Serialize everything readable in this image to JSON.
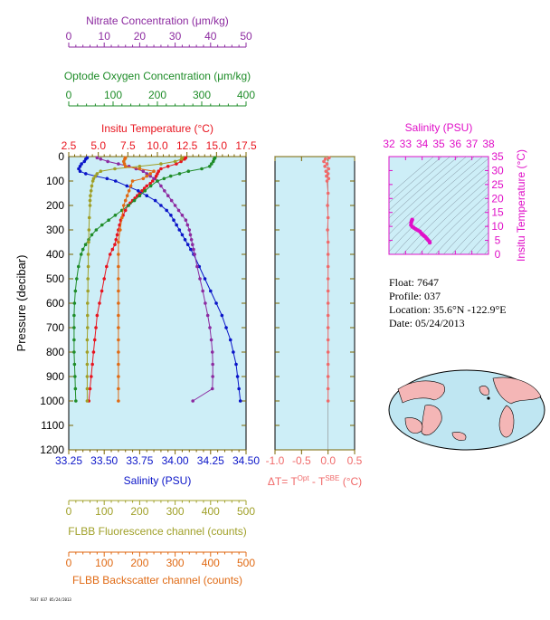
{
  "info": {
    "float": "Float:  7647",
    "profile": "Profile:  037",
    "location": "Location:  35.6°N  -122.9°E",
    "date": "Date:  05/24/2013"
  },
  "footer": "7647 037 05/24/2013",
  "colors": {
    "panel_bg": "#cdeef7",
    "temperature": "#e8141e",
    "salinity": "#0a14c8",
    "nitrate": "#8c2aa0",
    "oxygen": "#1e8c28",
    "fluorescence": "#a0a028",
    "backscatter": "#e06a14",
    "delta_t": "#f06a6a",
    "ts_magenta": "#e010c8",
    "axis_brown": "#7a6400"
  },
  "chart_data": [
    {
      "type": "line",
      "title": "",
      "ylabel": "Pressure (decibar)",
      "ylim": [
        0,
        1200
      ],
      "yticks": [
        "0",
        "100",
        "200",
        "300",
        "400",
        "500",
        "600",
        "700",
        "800",
        "900",
        "1000",
        "1100",
        "1200"
      ],
      "axes": {
        "nitrate": {
          "label": "Nitrate Concentration (μm/kg)",
          "lim": [
            0,
            50
          ],
          "ticks": [
            "0",
            "10",
            "20",
            "30",
            "40",
            "50"
          ]
        },
        "oxygen": {
          "label": "Optode Oxygen Concentration (μm/kg)",
          "lim": [
            0,
            400
          ],
          "ticks": [
            "0",
            "100",
            "200",
            "300",
            "400"
          ]
        },
        "temperature": {
          "label": "Insitu Temperature (°C)",
          "lim": [
            2.5,
            17.5
          ],
          "ticks": [
            "2.5",
            "5.0",
            "7.5",
            "10.0",
            "12.5",
            "15.0",
            "17.5"
          ]
        },
        "salinity": {
          "label": "Salinity (PSU)",
          "lim": [
            33.25,
            34.5
          ],
          "ticks": [
            "33.25",
            "33.50",
            "33.75",
            "34.00",
            "34.25",
            "34.50"
          ]
        },
        "fluorescence": {
          "label": "FLBB Fluorescence channel (counts)",
          "lim": [
            0,
            500
          ],
          "ticks": [
            "0",
            "100",
            "200",
            "300",
            "400",
            "500"
          ]
        },
        "backscatter": {
          "label": "FLBB Backscatter channel (counts)",
          "lim": [
            0,
            500
          ],
          "ticks": [
            "0",
            "100",
            "200",
            "300",
            "400",
            "500"
          ]
        }
      },
      "series": [
        {
          "key": "temperature",
          "y": [
            5,
            10,
            20,
            30,
            40,
            50,
            60,
            70,
            80,
            90,
            100,
            110,
            120,
            130,
            140,
            150,
            160,
            170,
            180,
            190,
            200,
            220,
            240,
            260,
            280,
            300,
            320,
            340,
            360,
            380,
            400,
            450,
            500,
            550,
            600,
            650,
            700,
            750,
            800,
            850,
            900,
            950,
            1000
          ],
          "x": [
            12.4,
            12.3,
            12.0,
            11.6,
            10.9,
            10.3,
            10.1,
            10.0,
            9.9,
            9.8,
            9.6,
            9.4,
            9.1,
            8.9,
            8.7,
            8.5,
            8.3,
            8.1,
            7.9,
            7.7,
            7.5,
            7.3,
            7.1,
            6.9,
            6.8,
            6.7,
            6.6,
            6.5,
            6.4,
            6.2,
            6.0,
            5.7,
            5.5,
            5.3,
            5.1,
            4.9,
            4.8,
            4.7,
            4.6,
            4.5,
            4.4,
            4.3,
            4.2
          ]
        },
        {
          "key": "salinity",
          "y": [
            5,
            10,
            20,
            30,
            40,
            50,
            60,
            70,
            80,
            90,
            100,
            120,
            140,
            160,
            180,
            200,
            220,
            240,
            260,
            280,
            300,
            320,
            340,
            360,
            380,
            400,
            450,
            500,
            550,
            600,
            650,
            700,
            750,
            800,
            850,
            900,
            950,
            1000
          ],
          "x": [
            33.38,
            33.37,
            33.36,
            33.34,
            33.33,
            33.32,
            33.33,
            33.37,
            33.44,
            33.52,
            33.58,
            33.66,
            33.74,
            33.8,
            33.86,
            33.9,
            33.94,
            33.97,
            33.99,
            34.01,
            34.03,
            34.05,
            34.07,
            34.09,
            34.11,
            34.13,
            34.17,
            34.21,
            34.25,
            34.29,
            34.33,
            34.36,
            34.39,
            34.41,
            34.43,
            34.44,
            34.45,
            34.46
          ]
        },
        {
          "key": "nitrate",
          "y": [
            5,
            10,
            20,
            30,
            40,
            50,
            60,
            70,
            80,
            90,
            100,
            120,
            140,
            160,
            180,
            200,
            220,
            240,
            260,
            280,
            300,
            320,
            340,
            360,
            380,
            400,
            450,
            500,
            550,
            600,
            650,
            700,
            750,
            800,
            850,
            900,
            950,
            1000
          ],
          "x": [
            8,
            9,
            11,
            14,
            17,
            19,
            21,
            22,
            23,
            24,
            25,
            26,
            27,
            28,
            29,
            30,
            31,
            32,
            33,
            33.5,
            34,
            34.3,
            34.6,
            34.9,
            35.2,
            35.5,
            36.2,
            37,
            37.8,
            38.5,
            39.2,
            39.8,
            40.2,
            40.5,
            40.6,
            40.6,
            40.5,
            35
          ]
        },
        {
          "key": "oxygen",
          "y": [
            5,
            10,
            20,
            30,
            40,
            50,
            60,
            70,
            80,
            90,
            100,
            120,
            140,
            160,
            180,
            200,
            220,
            240,
            260,
            280,
            300,
            320,
            340,
            360,
            380,
            400,
            450,
            500,
            550,
            600,
            650,
            700,
            750,
            800,
            850,
            900,
            950,
            1000
          ],
          "x": [
            330,
            328,
            326,
            322,
            318,
            300,
            270,
            250,
            230,
            215,
            200,
            185,
            172,
            160,
            148,
            135,
            120,
            105,
            90,
            75,
            62,
            52,
            45,
            38,
            32,
            28,
            22,
            18,
            15,
            13,
            12,
            12,
            12,
            12,
            13,
            14,
            15,
            16
          ]
        },
        {
          "key": "fluorescence",
          "y": [
            5,
            10,
            20,
            30,
            40,
            50,
            60,
            70,
            80,
            90,
            100,
            120,
            140,
            160,
            180,
            200,
            250,
            300,
            350,
            400,
            450,
            500,
            550,
            600,
            650,
            700,
            750,
            800,
            850,
            900,
            950,
            1000
          ],
          "x": [
            320,
            318,
            300,
            260,
            200,
            130,
            90,
            80,
            75,
            70,
            68,
            65,
            63,
            61,
            60,
            60,
            58,
            57,
            56,
            55,
            55,
            54,
            54,
            53,
            53,
            53,
            52,
            52,
            52,
            52,
            52,
            52
          ]
        },
        {
          "key": "backscatter",
          "y": [
            5,
            10,
            20,
            30,
            40,
            50,
            60,
            70,
            80,
            90,
            100,
            120,
            140,
            160,
            180,
            200,
            250,
            300,
            350,
            400,
            450,
            500,
            550,
            600,
            650,
            700,
            750,
            800,
            850,
            900,
            950,
            1000
          ],
          "x": [
            160,
            158,
            155,
            157,
            160,
            200,
            240,
            230,
            220,
            210,
            180,
            175,
            170,
            165,
            160,
            155,
            150,
            145,
            140,
            140,
            140,
            140,
            140,
            140,
            140,
            140,
            140,
            140,
            140,
            140,
            140,
            140
          ]
        }
      ]
    },
    {
      "type": "line",
      "title": "",
      "xlabel": "ΔT= T^Opt - T^SBE (°C)",
      "xlim": [
        -1.0,
        0.5
      ],
      "xticks": [
        "-1.0",
        "-0.5",
        "0.0",
        "0.5"
      ],
      "ylim": [
        0,
        1200
      ],
      "series": [
        {
          "name": "",
          "y": [
            5,
            10,
            20,
            30,
            40,
            50,
            60,
            70,
            80,
            90,
            100,
            150,
            200,
            250,
            300,
            350,
            400,
            450,
            500,
            550,
            600,
            650,
            700,
            750,
            800,
            850,
            900,
            950,
            1000
          ],
          "x": [
            0.02,
            -0.05,
            -0.08,
            -0.02,
            -0.06,
            0.01,
            -0.04,
            0.0,
            -0.03,
            0.01,
            -0.02,
            0.0,
            -0.01,
            0.0,
            -0.01,
            0.0,
            0.0,
            0.0,
            0.0,
            0.0,
            0.0,
            0.0,
            0.0,
            0.0,
            0.0,
            0.0,
            0.0,
            0.0,
            0.0
          ]
        }
      ]
    },
    {
      "type": "scatter",
      "title": "",
      "xlabel": "Salinity (PSU)",
      "ylabel": "Insitu Temperature (°C)",
      "xlim": [
        32,
        38
      ],
      "ylim": [
        0,
        35
      ],
      "xticks": [
        "32",
        "33",
        "34",
        "35",
        "36",
        "37",
        "38"
      ],
      "yticks": [
        "0",
        "5",
        "10",
        "15",
        "20",
        "25",
        "30",
        "35"
      ],
      "series": [
        {
          "name": "",
          "x": [
            33.4,
            33.37,
            33.34,
            33.33,
            33.4,
            33.5,
            33.62,
            33.74,
            33.86,
            33.94,
            34.0,
            34.06,
            34.12,
            34.2,
            34.28,
            34.36,
            34.44,
            34.46
          ],
          "y": [
            12.4,
            12.0,
            11.4,
            10.5,
            9.9,
            9.5,
            9.0,
            8.6,
            8.2,
            7.6,
            7.2,
            6.9,
            6.6,
            6.2,
            5.6,
            5.1,
            4.6,
            4.2
          ]
        }
      ]
    }
  ]
}
